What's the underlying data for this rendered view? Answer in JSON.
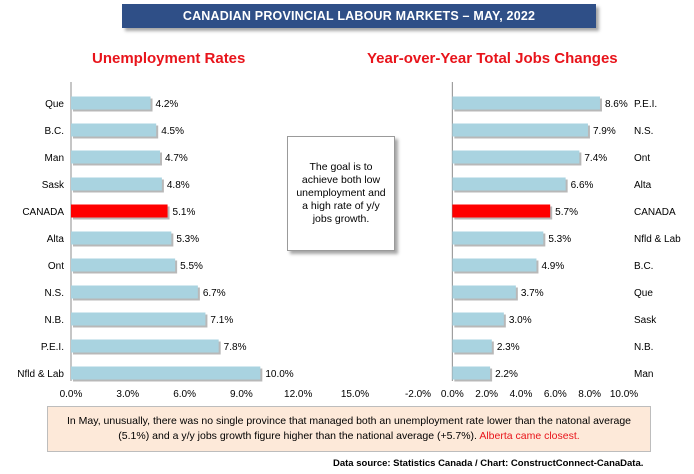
{
  "header": {
    "title": "CANADIAN PROVINCIAL LABOUR MARKETS – MAY, 2022"
  },
  "colors": {
    "bar": "#a9d3e0",
    "highlight": "#ff0000",
    "title": "#e8141b",
    "banner": "#2f4f87"
  },
  "callout": {
    "text": "The goal is to achieve both low unemployment and a high rate of y/y jobs growth."
  },
  "note": {
    "text": "In May, unusually, there was no single province that managed both an unemployment rate lower than the natonal average (5.1%) and a y/y jobs growth figure higher than the national average (+5.7%).",
    "highlight": "Alberta came closest."
  },
  "source": "Data source: Statistics Canada / Chart: ConstructConnect-CanaData.",
  "chart_data": [
    {
      "type": "bar",
      "orientation": "horizontal",
      "title": "Unemployment Rates",
      "categories": [
        "Que",
        "B.C.",
        "Man",
        "Sask",
        "CANADA",
        "Alta",
        "Ont",
        "N.S.",
        "N.B.",
        "P.E.I.",
        "Nfld & Lab"
      ],
      "values": [
        4.2,
        4.5,
        4.7,
        4.8,
        5.1,
        5.3,
        5.5,
        6.7,
        7.1,
        7.8,
        10.0
      ],
      "value_labels": [
        "4.2%",
        "4.5%",
        "4.7%",
        "4.8%",
        "5.1%",
        "5.3%",
        "5.5%",
        "6.7%",
        "7.1%",
        "7.8%",
        "10.0%"
      ],
      "highlight_category": "CANADA",
      "xlim": [
        0,
        15
      ],
      "ticks": [
        0,
        3,
        6,
        9,
        12,
        15
      ],
      "tick_labels": [
        "0.0%",
        "3.0%",
        "6.0%",
        "9.0%",
        "12.0%",
        "15.0%"
      ],
      "category_labels_side": "left"
    },
    {
      "type": "bar",
      "orientation": "horizontal",
      "title": "Year-over-Year Total Jobs Changes",
      "categories": [
        "P.E.I.",
        "N.S.",
        "Ont",
        "Alta",
        "CANADA",
        "Nfld & Lab",
        "B.C.",
        "Que",
        "Sask",
        "N.B.",
        "Man"
      ],
      "values": [
        8.6,
        7.9,
        7.4,
        6.6,
        5.7,
        5.3,
        4.9,
        3.7,
        3.0,
        2.3,
        2.2
      ],
      "value_labels": [
        "8.6%",
        "7.9%",
        "7.4%",
        "6.6%",
        "5.7%",
        "5.3%",
        "4.9%",
        "3.7%",
        "3.0%",
        "2.3%",
        "2.2%"
      ],
      "highlight_category": "CANADA",
      "xlim": [
        -2,
        10
      ],
      "ticks": [
        -2,
        0,
        2,
        4,
        6,
        8,
        10
      ],
      "tick_labels": [
        "-2.0%",
        "0.0%",
        "2.0%",
        "4.0%",
        "6.0%",
        "8.0%",
        "10.0%"
      ],
      "category_labels_side": "right"
    }
  ]
}
